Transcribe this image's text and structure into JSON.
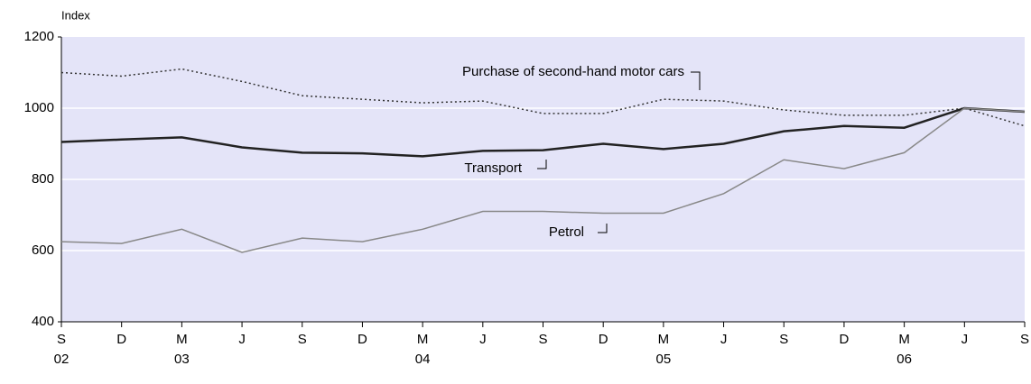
{
  "chart_data": {
    "type": "line",
    "y_label": "Index",
    "categories": [
      "S",
      "D",
      "M",
      "J",
      "S",
      "D",
      "M",
      "J",
      "S",
      "D",
      "M",
      "J",
      "S",
      "D",
      "M",
      "J",
      "S"
    ],
    "category_years": [
      "02",
      null,
      "03",
      null,
      null,
      null,
      "04",
      null,
      null,
      null,
      "05",
      null,
      null,
      null,
      "06",
      null,
      null
    ],
    "series": [
      {
        "name": "Purchase of second-hand motor cars",
        "color": "#333333",
        "style": "dotted",
        "values": [
          1100,
          1090,
          1110,
          1075,
          1035,
          1025,
          1015,
          1020,
          985,
          985,
          1025,
          1020,
          995,
          980,
          980,
          1000,
          950
        ]
      },
      {
        "name": "Transport",
        "color": "#222222",
        "style": "solid-thick",
        "values": [
          905,
          912,
          918,
          890,
          875,
          873,
          865,
          880,
          882,
          900,
          885,
          900,
          935,
          950,
          945,
          1000,
          990
        ]
      },
      {
        "name": "Petrol",
        "color": "#888888",
        "style": "solid",
        "values": [
          625,
          620,
          660,
          595,
          635,
          625,
          660,
          710,
          710,
          705,
          705,
          760,
          855,
          830,
          875,
          1000,
          990
        ]
      }
    ],
    "ylim": [
      400,
      1200
    ],
    "yticks": [
      400,
      600,
      800,
      1000,
      1200
    ],
    "grid": true
  }
}
